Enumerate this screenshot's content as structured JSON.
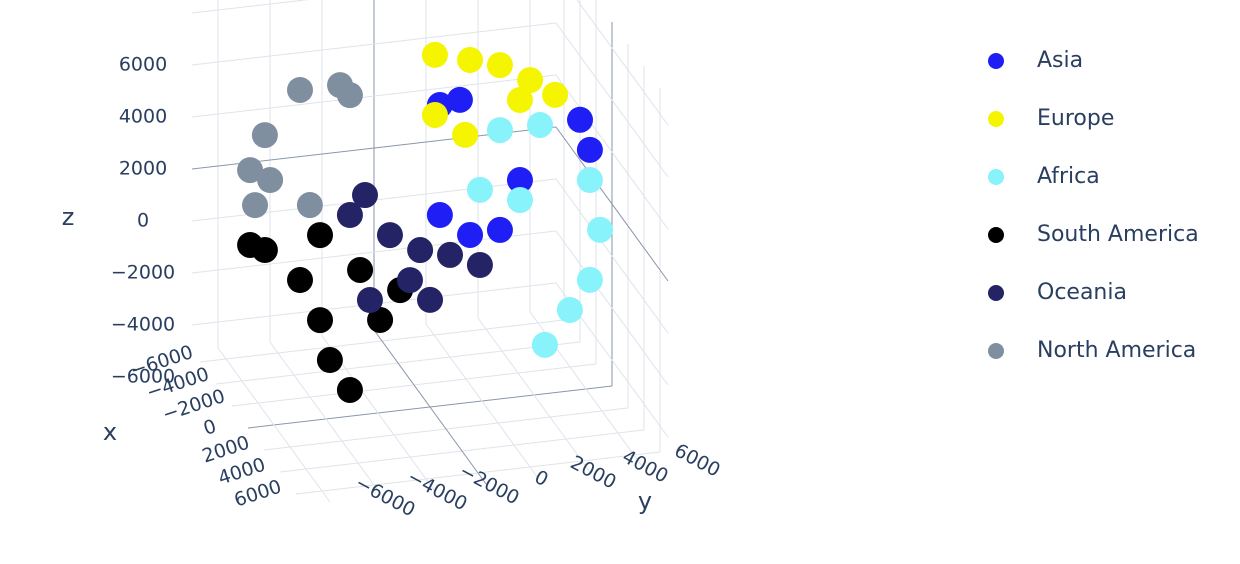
{
  "chart_data": {
    "type": "scatter3d",
    "xaxis_title": "x",
    "yaxis_title": "y",
    "zaxis_title": "z",
    "xlim": [
      -7000,
      7000
    ],
    "ylim": [
      -7000,
      7000
    ],
    "zlim": [
      -7000,
      7000
    ],
    "xticks": [
      {
        "value": -6000,
        "label": "−6000"
      },
      {
        "value": -4000,
        "label": "−4000"
      },
      {
        "value": -2000,
        "label": "−2000"
      },
      0,
      2000,
      4000,
      6000
    ],
    "yticks": [
      {
        "value": -6000,
        "label": "−6000"
      },
      {
        "value": -4000,
        "label": "−4000"
      },
      {
        "value": -2000,
        "label": "−2000"
      },
      0,
      2000,
      4000,
      6000
    ],
    "zticks": [
      {
        "value": -6000,
        "label": "−6000"
      },
      {
        "value": -4000,
        "label": "−4000"
      },
      {
        "value": -2000,
        "label": "−2000"
      },
      0,
      2000,
      4000,
      6000
    ],
    "grid": true,
    "legend": "right",
    "series": [
      {
        "name": "Asia",
        "color": "#1f1ff5",
        "x": [
          0,
          0,
          0,
          0,
          0,
          0,
          0,
          0
        ],
        "y": [
          380,
          1150,
          5770,
          6150,
          3460,
          2690,
          380,
          1540
        ],
        "z": [
          4570,
          4680,
          3380,
          2180,
          1330,
          -500,
          340,
          -560
        ]
      },
      {
        "name": "Europe",
        "color": "#f5f500",
        "x": [
          0,
          0,
          0,
          0,
          0,
          0,
          0,
          0
        ],
        "y": [
          190,
          1540,
          2690,
          3850,
          4810,
          190,
          1350,
          3460
        ],
        "z": [
          6520,
          6170,
          5840,
          5130,
          4450,
          4210,
          3310,
          4410
        ]
      },
      {
        "name": "Africa",
        "color": "#88f3fa",
        "x": [
          0,
          0,
          0,
          0,
          0,
          0,
          0,
          0,
          0
        ],
        "y": [
          2690,
          4230,
          6150,
          6540,
          6150,
          5380,
          4420,
          3460,
          1920
        ],
        "z": [
          3340,
          3360,
          1020,
          -940,
          -2820,
          -3890,
          -5120,
          560,
          1130
        ]
      },
      {
        "name": "South America",
        "color": "#000000",
        "x": [
          0,
          0,
          0,
          0,
          0,
          0,
          0,
          0,
          0,
          0
        ],
        "y": [
          -6920,
          -6350,
          -5000,
          -4230,
          -3850,
          -3080,
          -1920,
          -1150,
          -4230,
          -2690
        ],
        "z": [
          30,
          -230,
          -1540,
          -3170,
          -4750,
          -5990,
          -3430,
          -2370,
          100,
          -1420
        ]
      },
      {
        "name": "Oceania",
        "color": "#232366",
        "x": [
          0,
          0,
          0,
          0,
          0,
          0,
          0,
          0,
          0
        ],
        "y": [
          -2500,
          -3080,
          -1540,
          -380,
          770,
          1920,
          0,
          -2310,
          -770
        ],
        "z": [
          1440,
          740,
          -210,
          -920,
          -1240,
          -1760,
          -2880,
          -2620,
          -2030
        ]
      },
      {
        "name": "North America",
        "color": "#7f8fa0",
        "x": [
          0,
          0,
          0,
          0,
          0,
          0,
          0,
          0
        ],
        "y": [
          -5000,
          -3460,
          -3080,
          -6350,
          -6920,
          -6730,
          -4620,
          -6150
        ],
        "z": [
          5770,
          5780,
          5350,
          4190,
          2910,
          1540,
          1300,
          2440
        ]
      }
    ]
  }
}
